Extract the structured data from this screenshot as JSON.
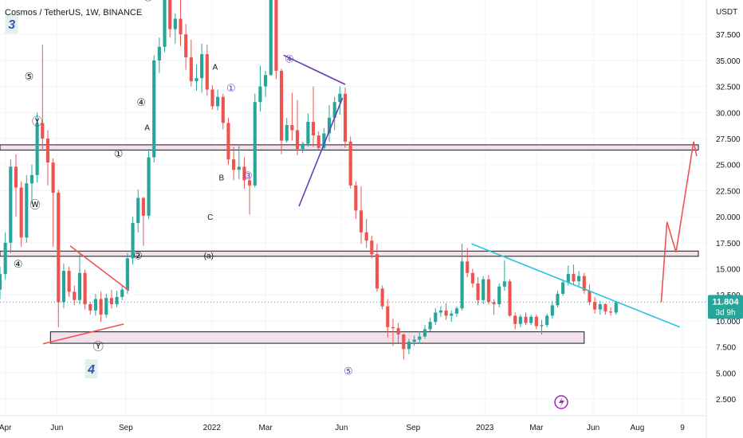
{
  "header": {
    "title": "Cosmos / TetherUS, 1W, BINANCE"
  },
  "price_axis": {
    "unit": "USDT",
    "current_price": "11.804",
    "countdown": "3d 9h"
  },
  "colors": {
    "up": "#26a69a",
    "down": "#ef5350",
    "trendline": "#26c6da",
    "triangle_line": "#673ab7",
    "projection": "#ef5350",
    "zone_fill": "#f3e2ea"
  },
  "chart_data": {
    "type": "candlestick",
    "y_ticks": [
      "2.500",
      "5.000",
      "7.500",
      "10.000",
      "12.500",
      "15.000",
      "17.500",
      "20.000",
      "22.500",
      "25.000",
      "27.500",
      "30.000",
      "32.500",
      "35.000",
      "37.500"
    ],
    "y_tick_values": [
      2.5,
      5,
      7.5,
      10,
      12.5,
      15,
      17.5,
      20,
      22.5,
      25,
      27.5,
      30,
      32.5,
      35,
      37.5
    ],
    "ylim": [
      0.9,
      40.8
    ],
    "x_ticks": [
      "Apr",
      "Jun",
      "Sep",
      "2022",
      "Mar",
      "Jun",
      "Sep",
      "2023",
      "Mar",
      "Jun",
      "Aug",
      "9"
    ],
    "x_tick_weeks": [
      -2,
      7.7,
      20.7,
      36.9,
      47,
      61.3,
      74.8,
      88.3,
      98,
      108.7,
      117,
      125.5
    ],
    "x_range_weeks": [
      -3,
      130
    ],
    "candles": [
      [
        13,
        15.2,
        12.1,
        14.5
      ],
      [
        14.5,
        18.5,
        14,
        17.5
      ],
      [
        17.5,
        25.5,
        16.5,
        24.8
      ],
      [
        24.8,
        26,
        20,
        22.8
      ],
      [
        22.8,
        23.4,
        17.1,
        18
      ],
      [
        18,
        24,
        17.5,
        23.2
      ],
      [
        23.2,
        25,
        21.2,
        24
      ],
      [
        24,
        30,
        23.3,
        29
      ],
      [
        29,
        36.5,
        26.5,
        27.5
      ],
      [
        27.5,
        28.3,
        23,
        25.2
      ],
      [
        25.2,
        25.6,
        17.1,
        22.3
      ],
      [
        22.3,
        22.6,
        9.4,
        11.8
      ],
      [
        11.8,
        15.5,
        11.2,
        14.8
      ],
      [
        14.8,
        15.2,
        12.3,
        12.8
      ],
      [
        12.8,
        13.4,
        11.5,
        12
      ],
      [
        12,
        16.6,
        11.6,
        14.6
      ],
      [
        14.6,
        14.9,
        11.1,
        11.6
      ],
      [
        11.6,
        11.8,
        10.6,
        11
      ],
      [
        11,
        12.6,
        10.5,
        12.1
      ],
      [
        12.1,
        12.8,
        9.9,
        10.6
      ],
      [
        10.6,
        12.6,
        10.3,
        12.2
      ],
      [
        12.2,
        13,
        11.2,
        11.6
      ],
      [
        11.6,
        12.9,
        11.3,
        12.3
      ],
      [
        12.3,
        13.4,
        12,
        13
      ],
      [
        13,
        16.5,
        12.6,
        16
      ],
      [
        16,
        20,
        15.4,
        19.4
      ],
      [
        19.4,
        22.6,
        18.5,
        21.8
      ],
      [
        21.8,
        21.9,
        17.2,
        20.1
      ],
      [
        20.1,
        26.5,
        19.8,
        25.7
      ],
      [
        25.7,
        35.5,
        25.2,
        35
      ],
      [
        35,
        37.2,
        33.8,
        36.3
      ],
      [
        36.3,
        42,
        35.8,
        41
      ],
      [
        41,
        42.5,
        37.2,
        38
      ],
      [
        38,
        39.5,
        36.6,
        39
      ],
      [
        39,
        44,
        36.4,
        37.5
      ],
      [
        37.5,
        38.5,
        34.1,
        35.3
      ],
      [
        35.3,
        37,
        32.5,
        33
      ],
      [
        33,
        34.6,
        32.1,
        33.3
      ],
      [
        33.3,
        36.6,
        31.9,
        35.6
      ],
      [
        35.6,
        36.5,
        31.6,
        32.2
      ],
      [
        32.2,
        32.6,
        30.3,
        30.6
      ],
      [
        30.6,
        32.2,
        30.2,
        31.5
      ],
      [
        31.5,
        31.8,
        28.4,
        29
      ],
      [
        29,
        29.5,
        25,
        25.5
      ],
      [
        25.5,
        26.7,
        23.5,
        24.5
      ],
      [
        24.5,
        26.8,
        23.6,
        24.8
      ],
      [
        24.8,
        25.7,
        22.7,
        23.5
      ],
      [
        23.5,
        23.8,
        20.2,
        23
      ],
      [
        23,
        31.8,
        22.8,
        31
      ],
      [
        31,
        34.5,
        30.1,
        32.5
      ],
      [
        32.5,
        34,
        31.5,
        33.6
      ],
      [
        33.6,
        43,
        33.5,
        41
      ],
      [
        41,
        41.5,
        33.2,
        34
      ],
      [
        34,
        34.2,
        26,
        27.3
      ],
      [
        27.3,
        29.5,
        27.1,
        28.8
      ],
      [
        28.8,
        31.9,
        27.3,
        28.3
      ],
      [
        28.3,
        31.2,
        25.9,
        26.5
      ],
      [
        26.5,
        27.2,
        26.1,
        27
      ],
      [
        27,
        29.9,
        26.7,
        29.1
      ],
      [
        29.1,
        32.5,
        26.7,
        27.8
      ],
      [
        27.8,
        28.2,
        26.3,
        26.6
      ],
      [
        26.6,
        28.5,
        26.4,
        28
      ],
      [
        28,
        30.7,
        27.2,
        29.5
      ],
      [
        29.5,
        31.5,
        28.3,
        31
      ],
      [
        31,
        32.5,
        29.8,
        31.8
      ],
      [
        31.8,
        32.4,
        26.6,
        27.2
      ],
      [
        27.2,
        27.7,
        22.7,
        23
      ],
      [
        23,
        23.4,
        19.8,
        20.6
      ],
      [
        20.6,
        22.9,
        17.4,
        18.5
      ],
      [
        18.5,
        19.8,
        17,
        17.7
      ],
      [
        17.7,
        18.2,
        16,
        16.4
      ],
      [
        16.4,
        17.4,
        12.8,
        13.1
      ],
      [
        13.1,
        13.4,
        11.1,
        11.4
      ],
      [
        11.4,
        12.1,
        8.4,
        9.4
      ],
      [
        9.4,
        10.2,
        7.6,
        9.3
      ],
      [
        9.3,
        9.8,
        7.9,
        8.7
      ],
      [
        8.7,
        8.8,
        6.3,
        7.3
      ],
      [
        7.3,
        8.3,
        6.8,
        8
      ],
      [
        8,
        8.6,
        7.6,
        8.2
      ],
      [
        8.2,
        9,
        7.8,
        8.5
      ],
      [
        8.5,
        9.6,
        8.3,
        9.2
      ],
      [
        9.2,
        10.3,
        9,
        9.9
      ],
      [
        9.9,
        11.2,
        9.6,
        10.8
      ],
      [
        10.8,
        11.4,
        10.4,
        11
      ],
      [
        11,
        11.7,
        10.1,
        10.5
      ],
      [
        10.5,
        11,
        9.9,
        10.7
      ],
      [
        10.7,
        11.4,
        10.4,
        11.2
      ],
      [
        11.2,
        17.4,
        11,
        15.7
      ],
      [
        15.7,
        17,
        14.2,
        14.6
      ],
      [
        14.6,
        15,
        13.2,
        13.6
      ],
      [
        13.6,
        14.2,
        11.5,
        12
      ],
      [
        12,
        14.3,
        11.6,
        14
      ],
      [
        14,
        14.4,
        11.6,
        11.8
      ],
      [
        11.8,
        12.1,
        10.6,
        11.6
      ],
      [
        11.6,
        13.6,
        11.3,
        13.3
      ],
      [
        13.3,
        15.8,
        12.9,
        13.8
      ],
      [
        13.8,
        14,
        10.4,
        10.5
      ],
      [
        10.5,
        10.8,
        9.2,
        9.7
      ],
      [
        9.7,
        10.6,
        9.4,
        10.4
      ],
      [
        10.4,
        10.8,
        9.6,
        9.8
      ],
      [
        9.8,
        10.6,
        9.6,
        10.4
      ],
      [
        10.4,
        10.6,
        9.2,
        9.5
      ],
      [
        9.5,
        10.1,
        8.7,
        9.6
      ],
      [
        9.6,
        10.7,
        9.4,
        10.5
      ],
      [
        10.5,
        11.9,
        10.2,
        11.5
      ],
      [
        11.5,
        12.9,
        11.3,
        12.6
      ],
      [
        12.6,
        14,
        12.4,
        13.7
      ],
      [
        13.7,
        15.3,
        13.4,
        14.5
      ],
      [
        14.5,
        15.4,
        13.5,
        13.8
      ],
      [
        13.8,
        14.8,
        13.2,
        14.3
      ],
      [
        14.3,
        14.6,
        12.6,
        12.9
      ],
      [
        12.9,
        13.5,
        11.5,
        11.8
      ],
      [
        11.8,
        12.3,
        10.7,
        11.1
      ],
      [
        11.1,
        11.9,
        10.6,
        11.6
      ],
      [
        11.6,
        11.7,
        10.6,
        10.9
      ],
      [
        10.9,
        11.3,
        10.5,
        10.8
      ],
      [
        10.8,
        11.9,
        10.6,
        11.8
      ]
    ],
    "series_start_week": -3,
    "projection_path": [
      [
        121.5,
        11.8
      ],
      [
        122.6,
        19.5
      ],
      [
        124.3,
        16.6
      ],
      [
        127.6,
        27.2
      ],
      [
        128.2,
        25.8
      ]
    ],
    "horizontal_zones": [
      {
        "from_week": -3,
        "to_week": 128.5,
        "low": 26.4,
        "high": 26.9
      },
      {
        "from_week": -3,
        "to_week": 128.5,
        "low": 16.2,
        "high": 16.7
      },
      {
        "from_week": 6.5,
        "to_week": 107,
        "low": 7.85,
        "high": 8.95
      }
    ],
    "trendlines": [
      {
        "name": "descending",
        "color": "#26c6da",
        "points": [
          [
            85.8,
            17.4
          ],
          [
            125,
            9.4
          ]
        ]
      },
      {
        "name": "triangle-upper",
        "color": "#673ab7",
        "points": [
          [
            50.4,
            35.5
          ],
          [
            62,
            32.7
          ]
        ]
      },
      {
        "name": "triangle-lower",
        "color": "#673ab7",
        "points": [
          [
            53.3,
            21
          ],
          [
            61.5,
            31.4
          ]
        ]
      },
      {
        "name": "wedge-upper",
        "color": "#ef5350",
        "points": [
          [
            10.2,
            17.2
          ],
          [
            21.3,
            12.9
          ]
        ]
      },
      {
        "name": "wedge-lower",
        "color": "#ef5350",
        "points": [
          [
            5.1,
            7.8
          ],
          [
            20.3,
            9.7
          ]
        ]
      }
    ],
    "wave_labels": [
      {
        "text": "3",
        "week": -0.8,
        "price": 38.5,
        "style": "big",
        "color": "#3f51b5"
      },
      {
        "text": "4",
        "week": 14.2,
        "price": 5.4,
        "style": "big",
        "color": "#3f51b5"
      },
      {
        "text": "⑤",
        "week": 2.5,
        "price": 33.5,
        "style": "circ",
        "color": "#131722"
      },
      {
        "text": "Ⓨ",
        "week": 4,
        "price": 29.2,
        "style": "circ",
        "color": "#131722"
      },
      {
        "text": "Ⓦ",
        "week": 3.6,
        "price": 21.2,
        "style": "circ",
        "color": "#131722"
      },
      {
        "text": "④",
        "week": 0.4,
        "price": 15.5,
        "style": "circ",
        "color": "#131722"
      },
      {
        "text": "①",
        "week": 19.3,
        "price": 26.1,
        "style": "circ",
        "color": "#131722"
      },
      {
        "text": "②",
        "week": 23,
        "price": 16.3,
        "style": "circ",
        "color": "#131722"
      },
      {
        "text": "Ⓨ",
        "week": 15.5,
        "price": 7.6,
        "style": "circ",
        "color": "#131722"
      },
      {
        "text": "④",
        "week": 23.6,
        "price": 31,
        "style": "circ",
        "color": "#131722"
      },
      {
        "text": "A",
        "week": 24.7,
        "price": 28.6,
        "style": "plain",
        "color": "#131722"
      },
      {
        "text": "Ⓧ",
        "week": 24.9,
        "price": 41.2,
        "style": "circ",
        "color": "#131722"
      },
      {
        "text": "A",
        "week": 37.5,
        "price": 34.4,
        "style": "plain",
        "color": "#131722"
      },
      {
        "text": "B",
        "week": 38.7,
        "price": 23.8,
        "style": "plain",
        "color": "#131722"
      },
      {
        "text": "C",
        "week": 36.6,
        "price": 20,
        "style": "plain",
        "color": "#131722"
      },
      {
        "text": "①",
        "week": 40.5,
        "price": 32.4,
        "style": "circ",
        "color": "#673ab7"
      },
      {
        "text": "③",
        "week": 43.7,
        "price": 24,
        "style": "circ",
        "color": "#673ab7"
      },
      {
        "text": "④",
        "week": 51.5,
        "price": 35.2,
        "style": "circ",
        "color": "#673ab7"
      },
      {
        "text": "⑤",
        "week": 62.6,
        "price": 5.2,
        "style": "circ",
        "color": "#673ab7"
      },
      {
        "text": "(a)",
        "week": 36.3,
        "price": 16.3,
        "style": "plain",
        "color": "#131722"
      }
    ]
  }
}
